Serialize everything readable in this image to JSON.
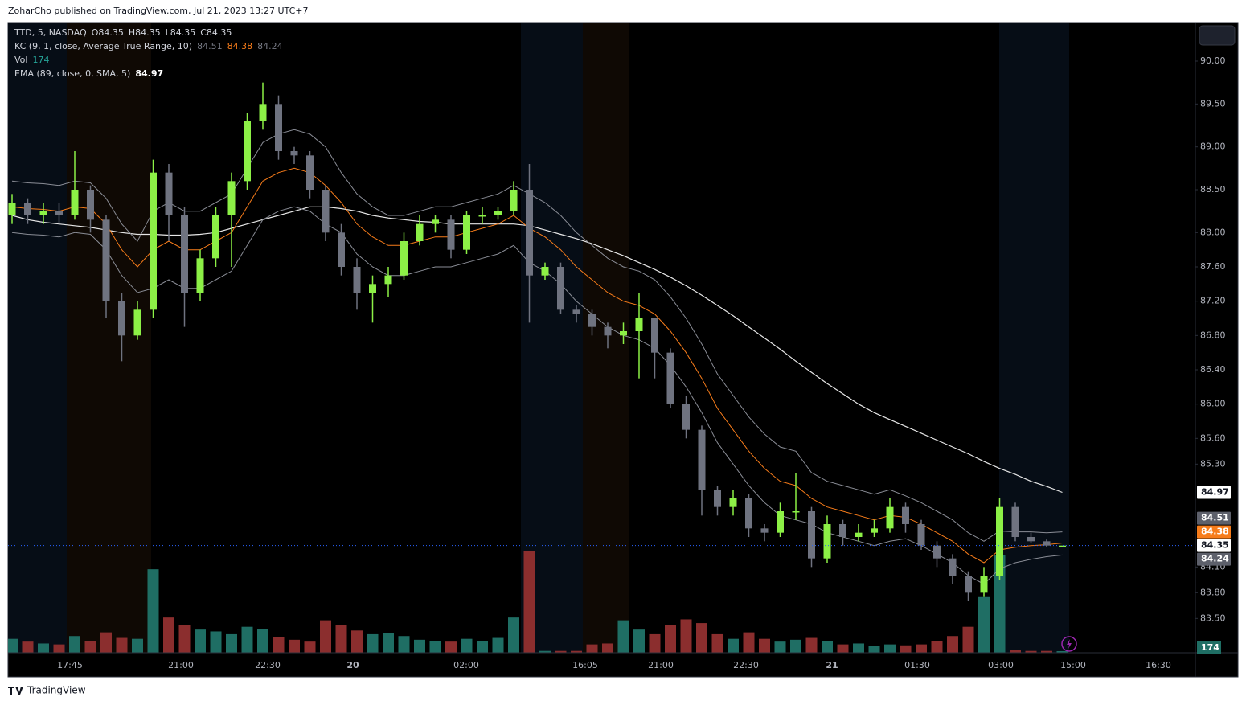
{
  "header": "ZoharCho published on TradingView.com, Jul 21, 2023 13:27 UTC+7",
  "footer": "TradingView",
  "chart_data": {
    "type": "candlestick",
    "legend": {
      "symbol": "TTD, 5, NASDAQ",
      "ohlc": [
        "O84.35",
        "H84.35",
        "L84.35",
        "C84.35"
      ]
    },
    "x_axis_labels": [
      "17:45",
      "21:00",
      "22:30",
      "20",
      "02:00",
      "16:05",
      "21:00",
      "22:30",
      "21",
      "01:30",
      "03:00",
      "15:00",
      "16:30"
    ],
    "ylim": [
      83.1,
      90.45
    ],
    "yticks": [
      {
        "value": 90,
        "label": "90.00"
      },
      {
        "value": 89.5,
        "label": "89.50"
      },
      {
        "value": 89,
        "label": "89.00"
      },
      {
        "value": 88.5,
        "label": "88.50"
      },
      {
        "value": 88,
        "label": "88.00"
      },
      {
        "value": 87.6,
        "label": "87.60"
      },
      {
        "value": 87.2,
        "label": "87.20"
      },
      {
        "value": 86.8,
        "label": "86.80"
      },
      {
        "value": 86.4,
        "label": "86.40"
      },
      {
        "value": 86,
        "label": "86.00"
      },
      {
        "value": 85.6,
        "label": "85.60"
      },
      {
        "value": 85.3,
        "label": "85.30"
      },
      {
        "value": 84.1,
        "label": "84.10"
      },
      {
        "value": 83.8,
        "label": "83.80"
      },
      {
        "value": 83.5,
        "label": "83.50"
      }
    ],
    "up_color": "#8cf046",
    "down_color": "#6f7380",
    "open": [
      88.2,
      88.35,
      88.2,
      88.25,
      88.2,
      88.5,
      88.15,
      87.2,
      86.8,
      87.1,
      88.7,
      88.2,
      87.3,
      87.7,
      88.2,
      88.6,
      89.3,
      89.5,
      88.95,
      88.9,
      88.5,
      88.0,
      87.6,
      87.3,
      87.4,
      87.5,
      87.9,
      88.1,
      88.15,
      87.8,
      88.2,
      88.2,
      88.25,
      88.5,
      87.5,
      87.6,
      87.1,
      87.05,
      86.9,
      86.8,
      86.85,
      87.0,
      86.6,
      86.0,
      85.7,
      85.0,
      84.8,
      84.9,
      84.55,
      84.5,
      84.75,
      84.75,
      84.2,
      84.6,
      84.45,
      84.5,
      84.55,
      84.8,
      84.6,
      84.35,
      84.2,
      84.0,
      83.8,
      84.0,
      84.8,
      84.45,
      84.4,
      84.35
    ],
    "high": [
      88.45,
      88.4,
      88.35,
      88.35,
      88.95,
      88.55,
      88.2,
      87.3,
      87.2,
      88.85,
      88.8,
      88.3,
      87.8,
      88.3,
      88.7,
      89.4,
      89.75,
      89.6,
      89.0,
      88.95,
      88.55,
      88.1,
      87.7,
      87.5,
      87.6,
      88.0,
      88.2,
      88.2,
      88.2,
      88.25,
      88.3,
      88.3,
      88.6,
      88.8,
      87.65,
      87.65,
      87.15,
      87.1,
      86.95,
      86.95,
      87.3,
      87.0,
      86.65,
      86.1,
      85.75,
      85.05,
      85.0,
      84.95,
      84.6,
      84.85,
      85.2,
      84.8,
      84.7,
      84.65,
      84.6,
      84.65,
      84.9,
      84.85,
      84.65,
      84.4,
      84.25,
      84.05,
      84.1,
      84.9,
      84.85,
      84.5,
      84.42,
      84.35
    ],
    "low": [
      88.1,
      88.1,
      88.1,
      88.1,
      88.15,
      88.0,
      87.0,
      86.5,
      86.75,
      87.0,
      87.9,
      86.9,
      87.2,
      87.6,
      87.6,
      88.5,
      89.2,
      88.85,
      88.8,
      88.4,
      87.9,
      87.5,
      87.1,
      86.95,
      87.25,
      87.45,
      87.85,
      88.0,
      87.7,
      87.75,
      88.1,
      88.15,
      88.2,
      86.95,
      87.45,
      87.05,
      86.95,
      86.8,
      86.65,
      86.7,
      86.3,
      86.3,
      85.95,
      85.6,
      84.7,
      84.7,
      84.7,
      84.45,
      84.4,
      84.45,
      84.65,
      84.1,
      84.15,
      84.35,
      84.4,
      84.45,
      84.5,
      84.5,
      84.3,
      84.1,
      83.9,
      83.7,
      83.75,
      83.95,
      84.4,
      84.38,
      84.33,
      84.35
    ],
    "close": [
      88.35,
      88.2,
      88.25,
      88.2,
      88.5,
      88.15,
      87.2,
      86.8,
      87.1,
      88.7,
      88.2,
      87.3,
      87.7,
      88.2,
      88.6,
      89.3,
      89.5,
      88.95,
      88.9,
      88.5,
      88.0,
      87.6,
      87.3,
      87.4,
      87.5,
      87.9,
      88.1,
      88.15,
      87.8,
      88.2,
      88.2,
      88.25,
      88.5,
      87.5,
      87.6,
      87.1,
      87.05,
      86.9,
      86.8,
      86.85,
      87.0,
      86.6,
      86.0,
      85.7,
      85.0,
      84.8,
      84.9,
      84.55,
      84.5,
      84.75,
      84.75,
      84.2,
      84.6,
      84.45,
      84.5,
      84.55,
      84.8,
      84.6,
      84.35,
      84.2,
      84.0,
      83.8,
      84.0,
      84.8,
      84.45,
      84.4,
      84.35,
      84.35
    ],
    "volume": {
      "name": "Vol",
      "lim": [
        0,
        13000
      ],
      "up_color": "#1f6e64",
      "down_color": "#8b2e2e",
      "values": [
        1500,
        1200,
        1000,
        900,
        1800,
        1300,
        2200,
        1600,
        1500,
        9000,
        3800,
        3000,
        2500,
        2300,
        2000,
        2800,
        2600,
        1700,
        1400,
        1200,
        3500,
        3000,
        2400,
        2000,
        2100,
        1800,
        1400,
        1300,
        1200,
        1500,
        1300,
        1600,
        3800,
        11000,
        200,
        200,
        200,
        900,
        1000,
        3500,
        2500,
        2000,
        3000,
        3600,
        3200,
        2000,
        1500,
        2200,
        1500,
        1200,
        1400,
        1600,
        1300,
        900,
        1000,
        700,
        900,
        800,
        900,
        1300,
        1800,
        2800,
        6000,
        10500,
        300,
        200,
        200,
        174
      ]
    },
    "kc": {
      "name": "KC (9, 1, close, Average True Range, 10)",
      "band_color": "#8a8d96",
      "middle_color": "#f77c1a",
      "upper": [
        88.6,
        88.58,
        88.57,
        88.55,
        88.6,
        88.58,
        88.4,
        88.1,
        87.9,
        88.25,
        88.35,
        88.25,
        88.25,
        88.35,
        88.45,
        88.75,
        89.05,
        89.15,
        89.2,
        89.15,
        89.0,
        88.7,
        88.45,
        88.3,
        88.2,
        88.2,
        88.25,
        88.3,
        88.3,
        88.35,
        88.4,
        88.45,
        88.55,
        88.45,
        88.35,
        88.2,
        88.0,
        87.85,
        87.7,
        87.6,
        87.55,
        87.45,
        87.25,
        87.0,
        86.7,
        86.35,
        86.1,
        85.85,
        85.65,
        85.5,
        85.45,
        85.2,
        85.1,
        85.05,
        85.0,
        84.95,
        85.0,
        84.93,
        84.85,
        84.75,
        84.65,
        84.5,
        84.4,
        84.52,
        84.51,
        84.51,
        84.5,
        84.51
      ],
      "middle": [
        88.3,
        88.28,
        88.27,
        88.25,
        88.3,
        88.28,
        88.1,
        87.8,
        87.6,
        87.8,
        87.9,
        87.8,
        87.8,
        87.9,
        88.0,
        88.3,
        88.6,
        88.7,
        88.75,
        88.7,
        88.55,
        88.35,
        88.1,
        87.95,
        87.85,
        87.85,
        87.9,
        87.95,
        87.95,
        88.0,
        88.05,
        88.1,
        88.2,
        88.05,
        87.95,
        87.8,
        87.6,
        87.45,
        87.3,
        87.2,
        87.15,
        87.05,
        86.85,
        86.6,
        86.3,
        85.95,
        85.7,
        85.45,
        85.25,
        85.1,
        85.05,
        84.9,
        84.8,
        84.75,
        84.7,
        84.65,
        84.7,
        84.68,
        84.6,
        84.5,
        84.4,
        84.25,
        84.15,
        84.3,
        84.33,
        84.35,
        84.36,
        84.38
      ],
      "lower": [
        88.0,
        87.98,
        87.97,
        87.95,
        88.0,
        87.98,
        87.8,
        87.5,
        87.3,
        87.35,
        87.45,
        87.35,
        87.35,
        87.45,
        87.55,
        87.85,
        88.15,
        88.25,
        88.3,
        88.25,
        88.1,
        88.0,
        87.75,
        87.6,
        87.5,
        87.5,
        87.55,
        87.6,
        87.6,
        87.65,
        87.7,
        87.75,
        87.85,
        87.65,
        87.55,
        87.4,
        87.2,
        87.05,
        86.9,
        86.8,
        86.75,
        86.65,
        86.45,
        86.2,
        85.9,
        85.55,
        85.3,
        85.05,
        84.85,
        84.7,
        84.65,
        84.6,
        84.5,
        84.45,
        84.4,
        84.35,
        84.4,
        84.43,
        84.35,
        84.25,
        84.15,
        84.0,
        83.9,
        84.08,
        84.15,
        84.19,
        84.22,
        84.24
      ]
    },
    "ema": {
      "name": "EMA (89, close, 0, SMA, 5)",
      "color": "#e6e6e6",
      "values": [
        88.2,
        88.15,
        88.12,
        88.1,
        88.08,
        88.06,
        88.03,
        88.0,
        87.98,
        87.98,
        87.97,
        87.97,
        87.98,
        88.0,
        88.05,
        88.1,
        88.15,
        88.2,
        88.25,
        88.3,
        88.3,
        88.28,
        88.25,
        88.2,
        88.17,
        88.15,
        88.13,
        88.12,
        88.1,
        88.1,
        88.1,
        88.1,
        88.1,
        88.08,
        88.03,
        87.98,
        87.93,
        87.87,
        87.8,
        87.73,
        87.65,
        87.57,
        87.48,
        87.38,
        87.27,
        87.15,
        87.03,
        86.9,
        86.77,
        86.64,
        86.5,
        86.37,
        86.24,
        86.12,
        86.0,
        85.9,
        85.82,
        85.74,
        85.66,
        85.58,
        85.5,
        85.42,
        85.33,
        85.25,
        85.18,
        85.1,
        85.04,
        84.97
      ]
    }
  }
}
